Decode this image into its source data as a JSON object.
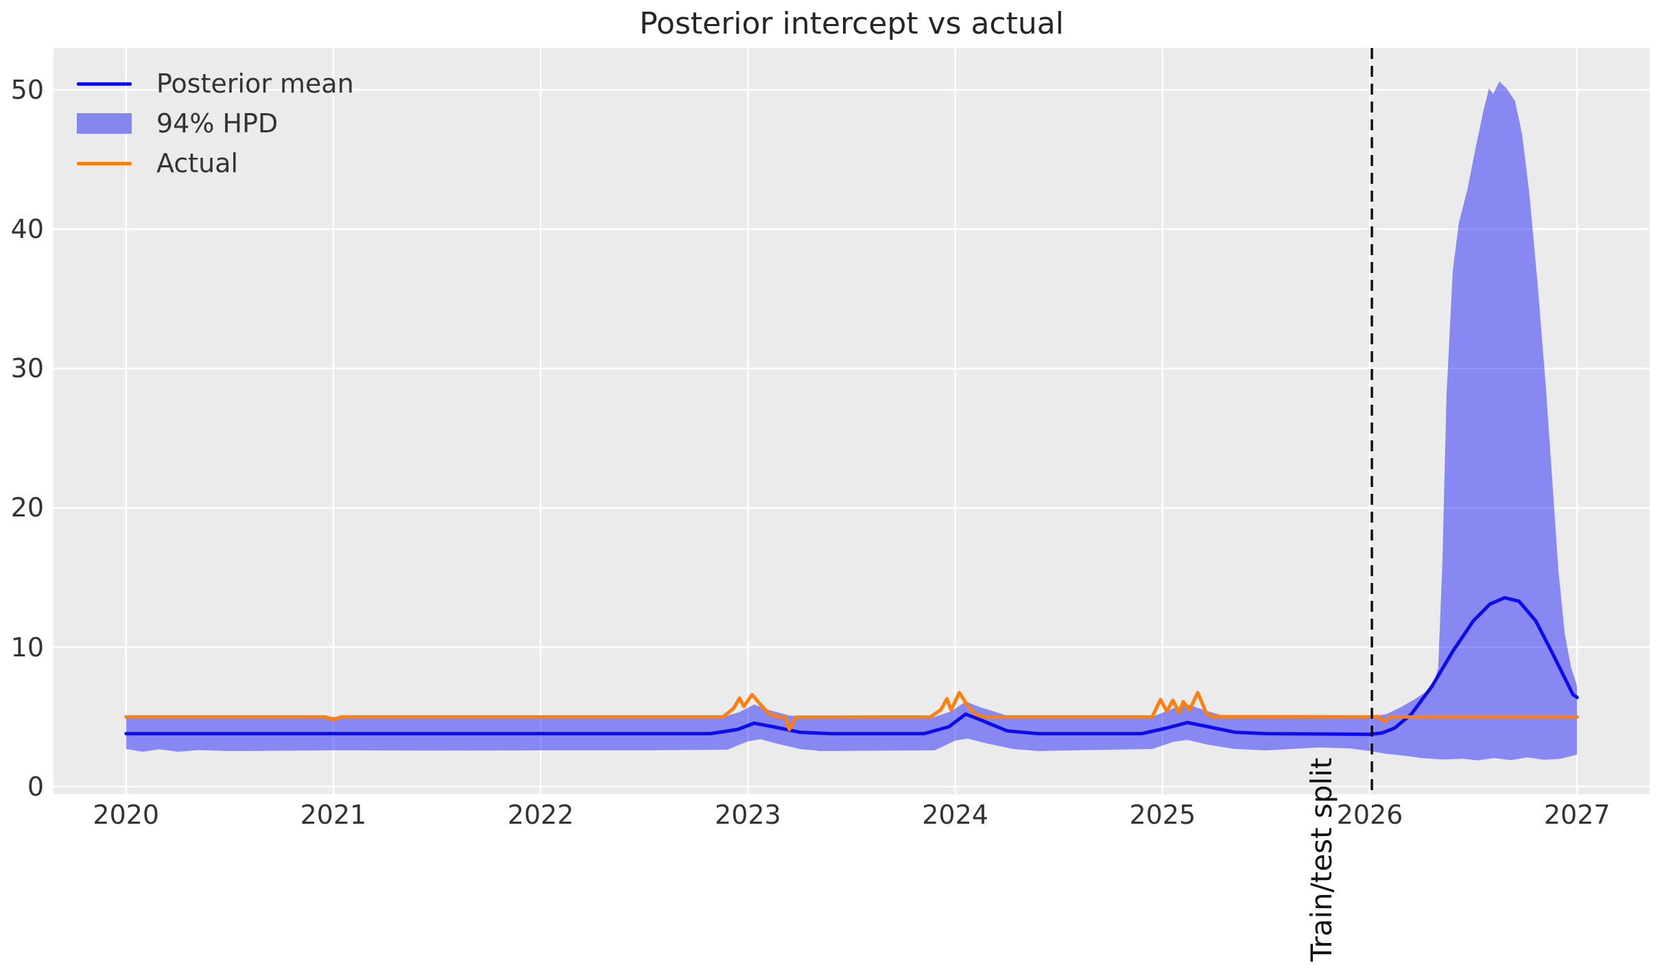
{
  "chart_data": {
    "type": "line",
    "title": "Posterior intercept vs actual",
    "xlabel": "",
    "ylabel": "",
    "x_ticks": [
      2020,
      2021,
      2022,
      2023,
      2024,
      2025,
      2026,
      2027
    ],
    "y_ticks": [
      0,
      10,
      20,
      30,
      40,
      50
    ],
    "xlim": [
      2019.65,
      2027.35
    ],
    "ylim": [
      -0.55,
      53.0
    ],
    "grid": true,
    "plot_bg": "#ebebeb",
    "grid_color": "#ffffff",
    "text_color": "#333333",
    "title_color": "#262626",
    "legend_position": "upper-left",
    "split_line": {
      "x": 2026.01,
      "label": "Train/test split",
      "color": "#111111",
      "style": "dashed"
    },
    "legend": [
      {
        "label": "Posterior mean",
        "swatch": "line",
        "color": "#0d0deb"
      },
      {
        "label": "94% HPD",
        "swatch": "patch",
        "color": "#8488ee"
      },
      {
        "label": "Actual",
        "swatch": "line",
        "color": "#ff7f0e"
      }
    ],
    "series": [
      {
        "name": "Posterior mean",
        "kind": "line",
        "color": "#0d0deb",
        "width": 5,
        "points": [
          [
            2020.0,
            3.8
          ],
          [
            2022.82,
            3.8
          ],
          [
            2022.95,
            4.1
          ],
          [
            2023.03,
            4.55
          ],
          [
            2023.12,
            4.3
          ],
          [
            2023.25,
            3.9
          ],
          [
            2023.4,
            3.8
          ],
          [
            2023.85,
            3.8
          ],
          [
            2023.97,
            4.3
          ],
          [
            2024.05,
            5.2
          ],
          [
            2024.12,
            4.8
          ],
          [
            2024.25,
            4.0
          ],
          [
            2024.4,
            3.8
          ],
          [
            2024.9,
            3.8
          ],
          [
            2025.02,
            4.2
          ],
          [
            2025.12,
            4.6
          ],
          [
            2025.22,
            4.3
          ],
          [
            2025.35,
            3.9
          ],
          [
            2025.5,
            3.8
          ],
          [
            2026.0,
            3.75
          ],
          [
            2026.06,
            3.85
          ],
          [
            2026.12,
            4.2
          ],
          [
            2026.2,
            5.2
          ],
          [
            2026.3,
            7.2
          ],
          [
            2026.4,
            9.7
          ],
          [
            2026.5,
            11.9
          ],
          [
            2026.58,
            13.1
          ],
          [
            2026.65,
            13.55
          ],
          [
            2026.72,
            13.3
          ],
          [
            2026.8,
            11.9
          ],
          [
            2026.88,
            9.6
          ],
          [
            2026.94,
            7.8
          ],
          [
            2026.98,
            6.6
          ],
          [
            2027.0,
            6.4
          ]
        ]
      },
      {
        "name": "Actual",
        "kind": "line",
        "color": "#ff7f0e",
        "width": 5,
        "points": [
          [
            2020.0,
            5
          ],
          [
            2020.96,
            5
          ],
          [
            2021.0,
            4.82
          ],
          [
            2021.04,
            5
          ],
          [
            2022.88,
            5
          ],
          [
            2022.93,
            5.6
          ],
          [
            2022.96,
            6.35
          ],
          [
            2022.98,
            5.75
          ],
          [
            2023.02,
            6.6
          ],
          [
            2023.06,
            5.9
          ],
          [
            2023.1,
            5.25
          ],
          [
            2023.14,
            5.02
          ],
          [
            2023.18,
            4.98
          ],
          [
            2023.2,
            4.1
          ],
          [
            2023.23,
            4.98
          ],
          [
            2023.88,
            5
          ],
          [
            2023.93,
            5.5
          ],
          [
            2023.96,
            6.3
          ],
          [
            2023.98,
            5.5
          ],
          [
            2024.02,
            6.75
          ],
          [
            2024.06,
            5.8
          ],
          [
            2024.1,
            5.2
          ],
          [
            2024.14,
            5
          ],
          [
            2024.95,
            5
          ],
          [
            2024.99,
            6.25
          ],
          [
            2025.02,
            5.4
          ],
          [
            2025.05,
            6.2
          ],
          [
            2025.08,
            5.3
          ],
          [
            2025.1,
            6.1
          ],
          [
            2025.13,
            5.5
          ],
          [
            2025.17,
            6.75
          ],
          [
            2025.21,
            5.3
          ],
          [
            2025.24,
            5.02
          ],
          [
            2026.0,
            5
          ],
          [
            2026.04,
            5.02
          ],
          [
            2026.07,
            4.68
          ],
          [
            2026.1,
            5
          ],
          [
            2027.0,
            5
          ]
        ]
      }
    ],
    "band": {
      "name": "94% HPD",
      "color": "#0000ff",
      "opacity": 0.42,
      "upper": [
        [
          2020.0,
          5.0
        ],
        [
          2022.88,
          5.0
        ],
        [
          2022.96,
          5.35
        ],
        [
          2023.03,
          5.9
        ],
        [
          2023.1,
          5.5
        ],
        [
          2023.2,
          5.1
        ],
        [
          2023.3,
          5.0
        ],
        [
          2023.9,
          5.0
        ],
        [
          2023.98,
          5.4
        ],
        [
          2024.05,
          6.1
        ],
        [
          2024.12,
          5.7
        ],
        [
          2024.25,
          5.1
        ],
        [
          2024.35,
          5.0
        ],
        [
          2024.95,
          5.0
        ],
        [
          2025.05,
          5.6
        ],
        [
          2025.12,
          5.9
        ],
        [
          2025.2,
          5.5
        ],
        [
          2025.3,
          5.05
        ],
        [
          2025.4,
          5.0
        ],
        [
          2026.0,
          5.02
        ],
        [
          2026.08,
          5.2
        ],
        [
          2026.15,
          5.7
        ],
        [
          2026.22,
          6.3
        ],
        [
          2026.3,
          7.1
        ],
        [
          2026.33,
          8.5
        ],
        [
          2026.35,
          16
        ],
        [
          2026.37,
          28
        ],
        [
          2026.4,
          37
        ],
        [
          2026.43,
          40.5
        ],
        [
          2026.47,
          42.8
        ],
        [
          2026.51,
          45.8
        ],
        [
          2026.55,
          48.6
        ],
        [
          2026.575,
          50.1
        ],
        [
          2026.595,
          49.7
        ],
        [
          2026.625,
          50.6
        ],
        [
          2026.66,
          50.1
        ],
        [
          2026.7,
          49.2
        ],
        [
          2026.735,
          46.8
        ],
        [
          2026.77,
          42.5
        ],
        [
          2026.81,
          36
        ],
        [
          2026.85,
          28.5
        ],
        [
          2026.88,
          22
        ],
        [
          2026.91,
          15.5
        ],
        [
          2026.94,
          11
        ],
        [
          2026.97,
          8.6
        ],
        [
          2027.0,
          7.2
        ]
      ],
      "lower": [
        [
          2020.0,
          2.7
        ],
        [
          2020.08,
          2.5
        ],
        [
          2020.16,
          2.68
        ],
        [
          2020.25,
          2.5
        ],
        [
          2020.35,
          2.62
        ],
        [
          2020.5,
          2.55
        ],
        [
          2021.0,
          2.6
        ],
        [
          2021.5,
          2.58
        ],
        [
          2022.0,
          2.6
        ],
        [
          2022.5,
          2.6
        ],
        [
          2022.9,
          2.65
        ],
        [
          2023.0,
          3.25
        ],
        [
          2023.06,
          3.4
        ],
        [
          2023.15,
          3.05
        ],
        [
          2023.25,
          2.7
        ],
        [
          2023.35,
          2.55
        ],
        [
          2023.9,
          2.6
        ],
        [
          2024.0,
          3.3
        ],
        [
          2024.06,
          3.45
        ],
        [
          2024.15,
          3.1
        ],
        [
          2024.28,
          2.7
        ],
        [
          2024.4,
          2.55
        ],
        [
          2024.95,
          2.7
        ],
        [
          2025.05,
          3.2
        ],
        [
          2025.12,
          3.35
        ],
        [
          2025.22,
          3.0
        ],
        [
          2025.35,
          2.7
        ],
        [
          2025.5,
          2.6
        ],
        [
          2025.75,
          2.8
        ],
        [
          2025.9,
          2.75
        ],
        [
          2026.0,
          2.55
        ],
        [
          2026.08,
          2.35
        ],
        [
          2026.15,
          2.25
        ],
        [
          2026.25,
          2.05
        ],
        [
          2026.35,
          1.95
        ],
        [
          2026.45,
          2.0
        ],
        [
          2026.52,
          1.88
        ],
        [
          2026.6,
          2.05
        ],
        [
          2026.68,
          1.9
        ],
        [
          2026.76,
          2.1
        ],
        [
          2026.84,
          1.92
        ],
        [
          2026.92,
          2.0
        ],
        [
          2027.0,
          2.3
        ]
      ]
    }
  }
}
